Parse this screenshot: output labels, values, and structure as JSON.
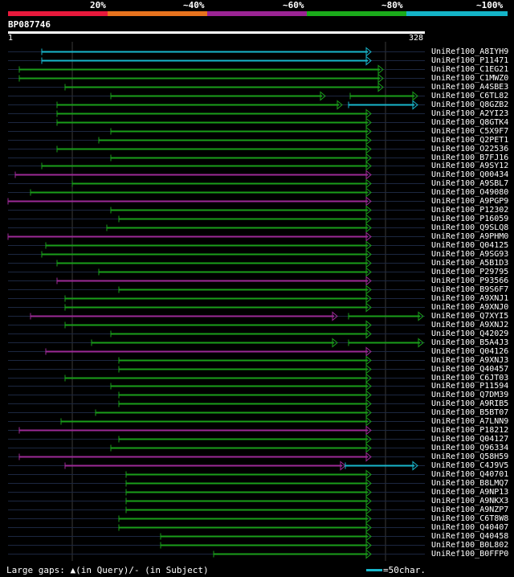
{
  "header": {
    "ticks": [
      "20%",
      "~40%",
      "~60%",
      "~80%",
      "~100%"
    ],
    "colors": [
      "#e8193c",
      "#e8731e",
      "#9b2494",
      "#1bab1b",
      "#14b4c8"
    ],
    "query_name": "BP087746",
    "ruler_start": "1",
    "ruler_end": "328"
  },
  "rows": [
    {
      "label": "UniRef100_A8IYH9",
      "bars": [
        [
          52,
          462,
          "#18b6cb"
        ]
      ]
    },
    {
      "label": "UniRef100_P11471",
      "bars": [
        [
          52,
          462,
          "#18b6cb"
        ]
      ]
    },
    {
      "label": "UniRef100_C1EG21",
      "bars": [
        [
          24,
          477,
          "#1a9e1a"
        ]
      ]
    },
    {
      "label": "UniRef100_C1MWZ0",
      "bars": [
        [
          24,
          477,
          "#1a9e1a"
        ]
      ]
    },
    {
      "label": "UniRef100_A4SBE3",
      "bars": [
        [
          81,
          477,
          "#1a9e1a"
        ]
      ]
    },
    {
      "label": "UniRef100_C6TL82",
      "bars": [
        [
          138,
          405,
          "#1a9e1a"
        ],
        [
          436,
          520,
          "#1a9e1a"
        ]
      ]
    },
    {
      "label": "UniRef100_Q8GZB2",
      "bars": [
        [
          71,
          426,
          "#1a9e1a"
        ],
        [
          434,
          520,
          "#18b6cb"
        ]
      ]
    },
    {
      "label": "UniRef100_A2YI23",
      "bars": [
        [
          71,
          462,
          "#1a9e1a"
        ]
      ]
    },
    {
      "label": "UniRef100_Q8GTK4",
      "bars": [
        [
          71,
          462,
          "#1a9e1a"
        ]
      ]
    },
    {
      "label": "UniRef100_C5X9F7",
      "bars": [
        [
          138,
          462,
          "#1a9e1a"
        ]
      ]
    },
    {
      "label": "UniRef100_Q2PET1",
      "bars": [
        [
          123,
          462,
          "#1a9e1a"
        ]
      ]
    },
    {
      "label": "UniRef100_O22536",
      "bars": [
        [
          71,
          462,
          "#1a9e1a"
        ]
      ]
    },
    {
      "label": "UniRef100_B7FJ16",
      "bars": [
        [
          138,
          462,
          "#1a9e1a"
        ]
      ]
    },
    {
      "label": "UniRef100_A9SY12",
      "bars": [
        [
          52,
          462,
          "#1a9e1a"
        ]
      ]
    },
    {
      "label": "UniRef100_Q00434",
      "bars": [
        [
          19,
          462,
          "#9c2a96"
        ]
      ]
    },
    {
      "label": "UniRef100_A9SBL7",
      "bars": [
        [
          90,
          462,
          "#1a9e1a"
        ]
      ]
    },
    {
      "label": "UniRef100_O49080",
      "bars": [
        [
          38,
          462,
          "#1a9e1a"
        ]
      ]
    },
    {
      "label": "UniRef100_A9PGP9",
      "bars": [
        [
          10,
          462,
          "#9c2a96"
        ]
      ]
    },
    {
      "label": "UniRef100_P12302",
      "bars": [
        [
          138,
          462,
          "#1a9e1a"
        ]
      ]
    },
    {
      "label": "UniRef100_P16059",
      "bars": [
        [
          148,
          462,
          "#1a9e1a"
        ]
      ]
    },
    {
      "label": "UniRef100_Q9SLQ8",
      "bars": [
        [
          133,
          462,
          "#1a9e1a"
        ]
      ]
    },
    {
      "label": "UniRef100_A9PHM0",
      "bars": [
        [
          10,
          462,
          "#9c2a96"
        ]
      ]
    },
    {
      "label": "UniRef100_Q04125",
      "bars": [
        [
          57,
          462,
          "#1a9e1a"
        ]
      ]
    },
    {
      "label": "UniRef100_A9SG93",
      "bars": [
        [
          52,
          462,
          "#1a9e1a"
        ]
      ]
    },
    {
      "label": "UniRef100_A5B1D3",
      "bars": [
        [
          71,
          462,
          "#1a9e1a"
        ]
      ]
    },
    {
      "label": "UniRef100_P29795",
      "bars": [
        [
          123,
          462,
          "#1a9e1a"
        ]
      ]
    },
    {
      "label": "UniRef100_P93566",
      "bars": [
        [
          71,
          462,
          "#9c2a96"
        ]
      ]
    },
    {
      "label": "UniRef100_B9S6F7",
      "bars": [
        [
          148,
          462,
          "#1a9e1a"
        ]
      ]
    },
    {
      "label": "UniRef100_A9XNJ1",
      "bars": [
        [
          81,
          462,
          "#1a9e1a"
        ]
      ]
    },
    {
      "label": "UniRef100_A9XNJ0",
      "bars": [
        [
          81,
          462,
          "#1a9e1a"
        ]
      ]
    },
    {
      "label": "UniRef100_Q7XYI5",
      "bars": [
        [
          38,
          420,
          "#9c2a96"
        ],
        [
          434,
          527,
          "#1a9e1a"
        ]
      ]
    },
    {
      "label": "UniRef100_A9XNJ2",
      "bars": [
        [
          81,
          462,
          "#1a9e1a"
        ]
      ]
    },
    {
      "label": "UniRef100_Q42029",
      "bars": [
        [
          138,
          462,
          "#1a9e1a"
        ]
      ]
    },
    {
      "label": "UniRef100_B5A4J3",
      "bars": [
        [
          114,
          420,
          "#1a9e1a"
        ],
        [
          434,
          527,
          "#1a9e1a"
        ]
      ]
    },
    {
      "label": "UniRef100_Q04126",
      "bars": [
        [
          57,
          462,
          "#9c2a96"
        ]
      ]
    },
    {
      "label": "UniRef100_A9XNJ3",
      "bars": [
        [
          148,
          462,
          "#1a9e1a"
        ]
      ]
    },
    {
      "label": "UniRef100_Q40457",
      "bars": [
        [
          148,
          462,
          "#1a9e1a"
        ]
      ]
    },
    {
      "label": "UniRef100_C6JT03",
      "bars": [
        [
          81,
          462,
          "#1a9e1a"
        ]
      ]
    },
    {
      "label": "UniRef100_P11594",
      "bars": [
        [
          138,
          462,
          "#1a9e1a"
        ]
      ]
    },
    {
      "label": "UniRef100_Q7DM39",
      "bars": [
        [
          148,
          462,
          "#1a9e1a"
        ]
      ]
    },
    {
      "label": "UniRef100_A9RIB5",
      "bars": [
        [
          148,
          462,
          "#1a9e1a"
        ]
      ]
    },
    {
      "label": "UniRef100_B5BT07",
      "bars": [
        [
          119,
          462,
          "#1a9e1a"
        ]
      ]
    },
    {
      "label": "UniRef100_A7LNN9",
      "bars": [
        [
          76,
          462,
          "#1a9e1a"
        ]
      ]
    },
    {
      "label": "UniRef100_P18212",
      "bars": [
        [
          24,
          462,
          "#9c2a96"
        ]
      ]
    },
    {
      "label": "UniRef100_Q04127",
      "bars": [
        [
          148,
          462,
          "#1a9e1a"
        ]
      ]
    },
    {
      "label": "UniRef100_Q96334",
      "bars": [
        [
          138,
          462,
          "#1a9e1a"
        ]
      ]
    },
    {
      "label": "UniRef100_Q58H59",
      "bars": [
        [
          24,
          462,
          "#9c2a96"
        ]
      ]
    },
    {
      "label": "UniRef100_C4J9V5",
      "bars": [
        [
          81,
          430,
          "#9c2a96"
        ],
        [
          430,
          520,
          "#18b6cb"
        ]
      ]
    },
    {
      "label": "UniRef100_Q40701",
      "bars": [
        [
          157,
          462,
          "#1a9e1a"
        ]
      ]
    },
    {
      "label": "UniRef100_B8LMQ7",
      "bars": [
        [
          157,
          462,
          "#1a9e1a"
        ]
      ]
    },
    {
      "label": "UniRef100_A9NP13",
      "bars": [
        [
          157,
          462,
          "#1a9e1a"
        ]
      ]
    },
    {
      "label": "UniRef100_A9NKX3",
      "bars": [
        [
          157,
          462,
          "#1a9e1a"
        ]
      ]
    },
    {
      "label": "UniRef100_A9NZP7",
      "bars": [
        [
          157,
          462,
          "#1a9e1a"
        ]
      ]
    },
    {
      "label": "UniRef100_C6T8W8",
      "bars": [
        [
          148,
          462,
          "#1a9e1a"
        ]
      ]
    },
    {
      "label": "UniRef100_Q40407",
      "bars": [
        [
          148,
          462,
          "#1a9e1a"
        ]
      ]
    },
    {
      "label": "UniRef100_Q40458",
      "bars": [
        [
          200,
          462,
          "#1a9e1a"
        ]
      ]
    },
    {
      "label": "UniRef100_B0L802",
      "bars": [
        [
          200,
          462,
          "#1a9e1a"
        ]
      ]
    },
    {
      "label": "UniRef100_B0FFP0",
      "bars": [
        [
          266,
          462,
          "#1a9e1a"
        ]
      ]
    }
  ],
  "footer": {
    "gaps_text": "Large gaps: ▲(in Query)/- (in Subject)",
    "scale_color": "#18b6cb",
    "scale_text": "=50char."
  }
}
